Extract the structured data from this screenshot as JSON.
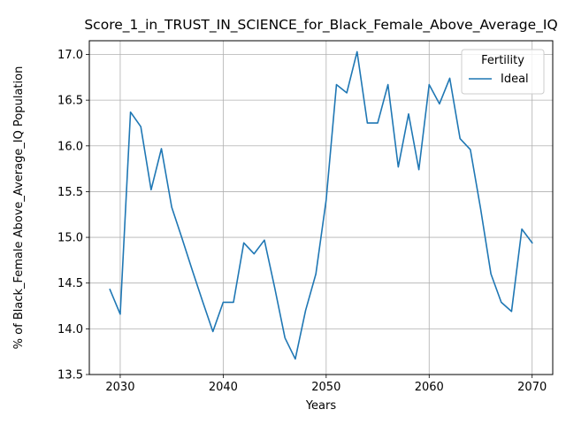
{
  "chart_data": {
    "type": "line",
    "title": "Score_1_in_TRUST_IN_SCIENCE_for_Black_Female_Above_Average_IQ",
    "xlabel": "Years",
    "ylabel": "% of Black_Female Above_Average_IQ Population",
    "xlim": [
      2027,
      2072
    ],
    "ylim": [
      13.5,
      17.15
    ],
    "x_ticks": [
      2030,
      2040,
      2050,
      2060,
      2070
    ],
    "x_tick_labels": [
      "2030",
      "2040",
      "2050",
      "2060",
      "2070"
    ],
    "y_ticks": [
      13.5,
      14.0,
      14.5,
      15.0,
      15.5,
      16.0,
      16.5,
      17.0
    ],
    "y_tick_labels": [
      "13.5",
      "14.0",
      "14.5",
      "15.0",
      "15.5",
      "16.0",
      "16.5",
      "17.0"
    ],
    "grid": true,
    "legend": {
      "title": "Fertility",
      "placement": "top-right"
    },
    "series": [
      {
        "name": "Ideal",
        "color": "#1f77b4",
        "x": [
          2029,
          2030,
          2031,
          2032,
          2033,
          2034,
          2035,
          2036,
          2037,
          2038,
          2039,
          2040,
          2041,
          2042,
          2043,
          2044,
          2045,
          2046,
          2047,
          2048,
          2049,
          2050,
          2051,
          2052,
          2053,
          2054,
          2055,
          2056,
          2057,
          2058,
          2059,
          2060,
          2061,
          2062,
          2063,
          2064,
          2065,
          2066,
          2067,
          2068,
          2069,
          2070
        ],
        "y": [
          14.43,
          14.16,
          16.37,
          16.21,
          15.52,
          15.97,
          15.33,
          14.99,
          14.64,
          14.3,
          13.97,
          14.29,
          14.29,
          14.94,
          14.82,
          14.97,
          14.45,
          13.9,
          13.67,
          14.2,
          14.6,
          15.41,
          16.67,
          16.58,
          17.03,
          16.25,
          16.25,
          16.67,
          15.77,
          16.35,
          15.74,
          16.67,
          16.46,
          16.74,
          16.08,
          15.96,
          15.31,
          14.6,
          14.29,
          14.19,
          15.09,
          14.94
        ]
      }
    ]
  }
}
